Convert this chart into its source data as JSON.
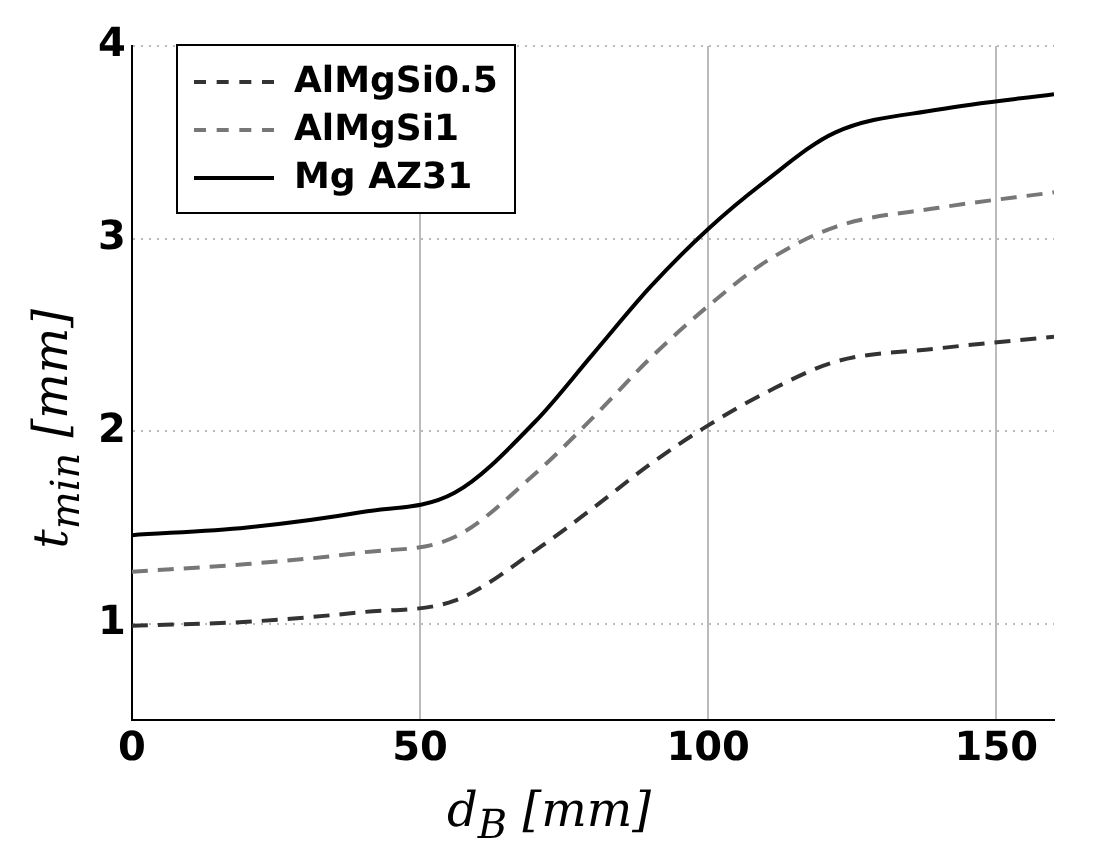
{
  "chart_data": {
    "type": "line",
    "xlabel": "d$_{B}$ [mm]",
    "ylabel": "t$_{min}$ [mm]",
    "xlim": [
      0,
      160
    ],
    "xticks": [
      0,
      50,
      100,
      150
    ],
    "ylim": [
      0.5,
      4
    ],
    "yticks": [
      1,
      2,
      3,
      4
    ],
    "grid": true,
    "legend": "top left",
    "marker": "none",
    "series": [
      {
        "name": "AlMgSi0.5",
        "color": "#333333",
        "line_style": "dashed",
        "x": [
          0,
          20,
          40,
          56,
          70,
          80,
          90,
          100,
          110,
          122,
          140,
          160
        ],
        "values": [
          0.99,
          1.01,
          1.06,
          1.12,
          1.38,
          1.6,
          1.83,
          2.03,
          2.2,
          2.36,
          2.43,
          2.49
        ]
      },
      {
        "name": "AlMgSi1",
        "color": "#777777",
        "line_style": "dashed",
        "x": [
          0,
          20,
          40,
          56,
          70,
          80,
          90,
          100,
          110,
          122,
          140,
          160
        ],
        "values": [
          1.27,
          1.31,
          1.37,
          1.45,
          1.78,
          2.07,
          2.38,
          2.65,
          2.88,
          3.06,
          3.16,
          3.24
        ]
      },
      {
        "name": "Mg AZ31",
        "color": "#000000",
        "line_style": "solid",
        "x": [
          0,
          20,
          40,
          56,
          70,
          80,
          90,
          100,
          110,
          122,
          140,
          160
        ],
        "values": [
          1.46,
          1.5,
          1.58,
          1.68,
          2.05,
          2.4,
          2.75,
          3.05,
          3.3,
          3.55,
          3.67,
          3.75
        ]
      }
    ]
  }
}
